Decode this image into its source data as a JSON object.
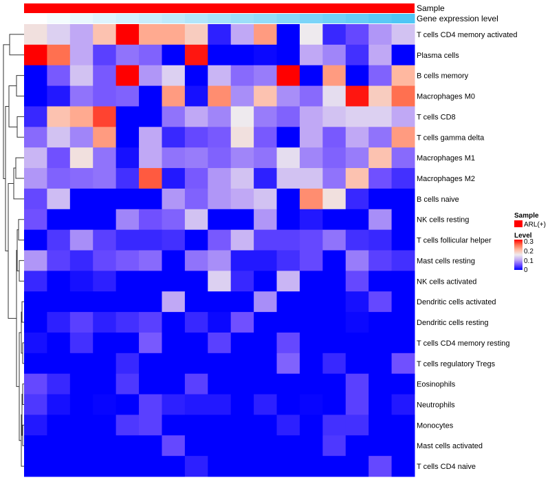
{
  "chart_data": {
    "type": "heatmap",
    "title": "",
    "annotations": {
      "sample": {
        "label": "Sample",
        "color": "#ff0000",
        "value": "ARL(+)"
      },
      "gene_expression": {
        "label": "Gene expression level",
        "low_color": "#ffffff",
        "high_color": "#4fc6f5",
        "values": [
          0,
          0.06,
          0.12,
          0.19,
          0.25,
          0.31,
          0.37,
          0.44,
          0.5,
          0.56,
          0.62,
          0.69,
          0.75,
          0.81,
          0.87,
          0.94,
          1
        ]
      }
    },
    "rows": [
      "T cells CD4 memory activated",
      "Plasma cells",
      "B cells memory",
      "Macrophages M0",
      "T cells CD8",
      "T cells gamma delta",
      "Macrophages M1",
      "Macrophages M2",
      "B cells naive",
      "NK cells resting",
      "T cells follicular helper",
      "Mast cells resting",
      "NK cells activated",
      "Dendritic cells activated",
      "Dendritic cells resting",
      "T cells CD4 memory resting",
      "T cells regulatory  Tregs",
      "Eosinophils",
      "Neutrophils",
      "Monocytes",
      "Mast cells activated",
      "T cells CD4 naive"
    ],
    "values": [
      [
        0.16,
        0.13,
        0.1,
        0.19,
        0.3,
        0.21,
        0.21,
        0.18,
        0.02,
        0.1,
        0.22,
        0,
        0.15,
        0.025,
        0.045,
        0.09,
        0.12
      ],
      [
        0.3,
        0.25,
        0.1,
        0.04,
        0.07,
        0.06,
        0,
        0.29,
        0,
        0,
        0.005,
        0,
        0.1,
        0.08,
        0.03,
        0.1,
        0
      ],
      [
        0,
        0.055,
        0.12,
        0.055,
        0.3,
        0.09,
        0.13,
        0,
        0.11,
        0.065,
        0.075,
        0.3,
        0,
        0.22,
        0,
        0.06,
        0.2
      ],
      [
        0,
        0.015,
        0.07,
        0.055,
        0.06,
        0,
        0.22,
        0.01,
        0.23,
        0.085,
        0.19,
        0.085,
        0.065,
        0.14,
        0.29,
        0.18,
        0.25
      ],
      [
        0.025,
        0.19,
        0.21,
        0.27,
        0,
        0,
        0.07,
        0.1,
        0.08,
        0.15,
        0.075,
        0.06,
        0.1,
        0.12,
        0.13,
        0.13,
        0.1
      ],
      [
        0.065,
        0.12,
        0.08,
        0.22,
        0,
        0.1,
        0.025,
        0.045,
        0.055,
        0.16,
        0.055,
        0,
        0.1,
        0.055,
        0.1,
        0.07,
        0.22
      ],
      [
        0.11,
        0.05,
        0.16,
        0.07,
        0.01,
        0.1,
        0.07,
        0.075,
        0.06,
        0.08,
        0.07,
        0.14,
        0.08,
        0.06,
        0.075,
        0.19,
        0.065
      ],
      [
        0.09,
        0.06,
        0.065,
        0.07,
        0.03,
        0.26,
        0.015,
        0.055,
        0.09,
        0.12,
        0.02,
        0.12,
        0.12,
        0.07,
        0.19,
        0.05,
        0.03
      ],
      [
        0.045,
        0.115,
        0,
        0,
        0,
        0,
        0.09,
        0.06,
        0.09,
        0.1,
        0.12,
        0,
        0.23,
        0.16,
        0.025,
        0,
        0
      ],
      [
        0.05,
        0,
        0,
        0,
        0.08,
        0.05,
        0.06,
        0.12,
        0,
        0,
        0.09,
        0,
        0.015,
        0,
        0,
        0.085,
        0
      ],
      [
        0,
        0.035,
        0.085,
        0.04,
        0.025,
        0.025,
        0.03,
        0,
        0.055,
        0.11,
        0.04,
        0.04,
        0.045,
        0.07,
        0.03,
        0.025,
        0
      ],
      [
        0.09,
        0.04,
        0.025,
        0.045,
        0.055,
        0.065,
        0,
        0.07,
        0.085,
        0.015,
        0.015,
        0.03,
        0.045,
        0,
        0.075,
        0.04,
        0.03
      ],
      [
        0.025,
        0,
        0.01,
        0.02,
        0,
        0,
        0,
        0,
        0.13,
        0.025,
        0,
        0.11,
        0,
        0,
        0.045,
        0,
        0
      ],
      [
        0,
        0,
        0,
        0,
        0,
        0,
        0.1,
        0,
        0,
        0,
        0.085,
        0,
        0,
        0,
        0.01,
        0.045,
        0
      ],
      [
        0,
        0.02,
        0.04,
        0.02,
        0.03,
        0.04,
        0,
        0.025,
        0.005,
        0.05,
        0,
        0,
        0,
        0,
        0.005,
        0,
        0
      ],
      [
        0.01,
        0,
        0.03,
        0,
        0,
        0.055,
        0,
        0,
        0.04,
        0,
        0,
        0.045,
        0,
        0,
        0,
        0,
        0
      ],
      [
        0,
        0,
        0,
        0,
        0.025,
        0,
        0,
        0,
        0,
        0,
        0,
        0.06,
        0,
        0.025,
        0,
        0,
        0.05
      ],
      [
        0.045,
        0.025,
        0,
        0,
        0.035,
        0,
        0,
        0.04,
        0,
        0,
        0,
        0,
        0,
        0,
        0.04,
        0,
        0
      ],
      [
        0.035,
        0.01,
        0,
        0.003,
        0,
        0.04,
        0.02,
        0.015,
        0.015,
        0,
        0.02,
        0,
        0.003,
        0,
        0.04,
        0,
        0.015
      ],
      [
        0.015,
        0,
        0,
        0,
        0.035,
        0.04,
        0,
        0,
        0,
        0,
        0,
        0.02,
        0,
        0.03,
        0.03,
        0,
        0
      ],
      [
        0,
        0,
        0,
        0,
        0,
        0,
        0.045,
        0,
        0,
        0,
        0,
        0,
        0,
        0.035,
        0,
        0,
        0
      ],
      [
        0,
        0,
        0,
        0,
        0,
        0,
        0,
        0.02,
        0,
        0,
        0,
        0,
        0,
        0,
        0,
        0.045,
        0
      ]
    ],
    "color_scale": {
      "range": [
        0,
        0.3
      ],
      "low": "#0000ff",
      "mid": "#eeeaee",
      "high": "#ff0000"
    },
    "legend": {
      "placement": "right",
      "sample_title": "Sample",
      "sample_item": "ARL(+)",
      "level_title": "Level",
      "ticks": [
        "0.3",
        "0.2",
        "0.1",
        "0"
      ]
    }
  }
}
